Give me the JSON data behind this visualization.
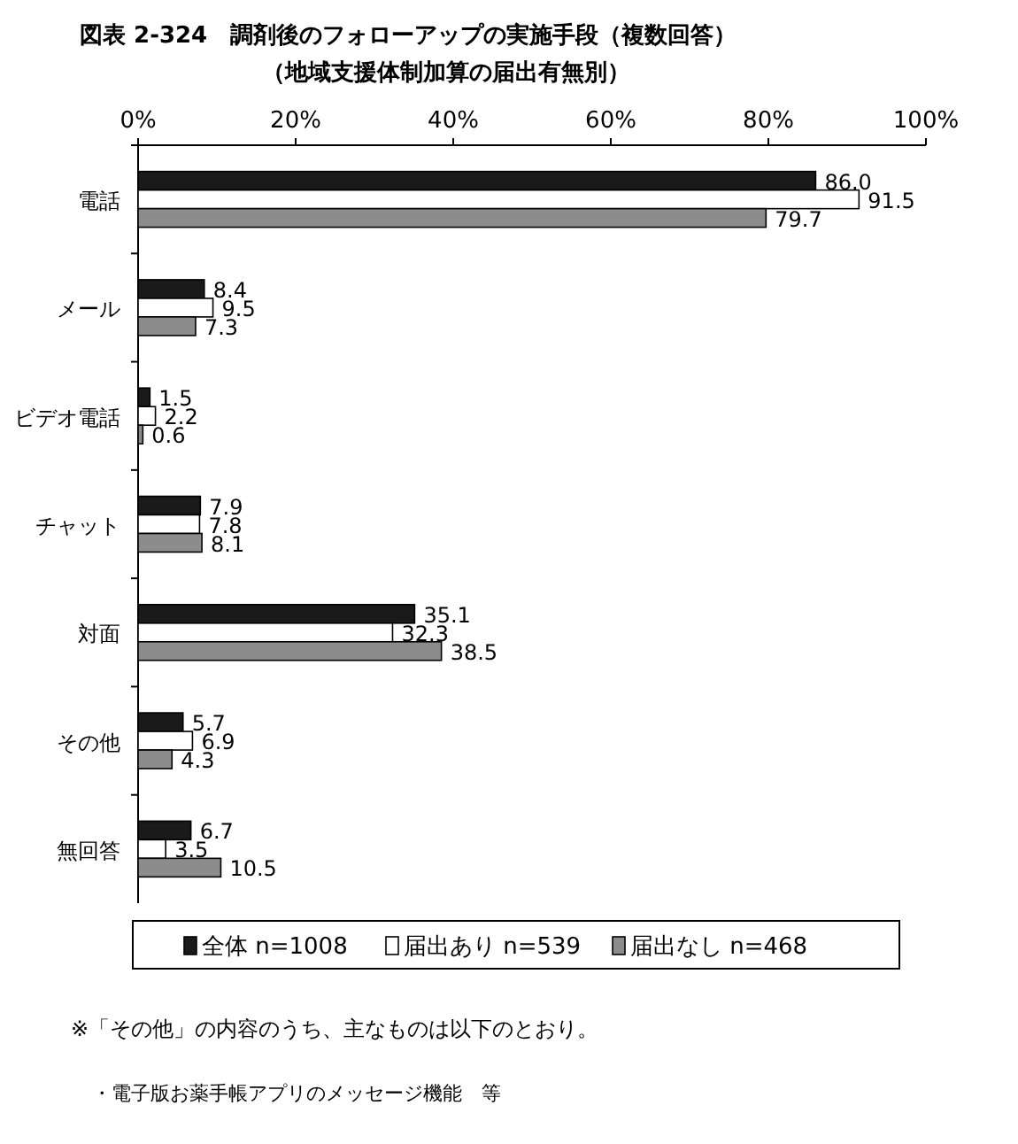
{
  "chart_data": {
    "type": "bar",
    "orientation": "horizontal",
    "title": "図表 2-324　調剤後のフォローアップの実施手段（複数回答）",
    "subtitle": "（地域支援体制加算の届出有無別）",
    "categories": [
      "電話",
      "メール",
      "ビデオ電話",
      "チャット",
      "対面",
      "その他",
      "無回答"
    ],
    "series": [
      {
        "name": "全体 n=1008",
        "color": "#1a1a1a",
        "values": [
          86.0,
          8.4,
          1.5,
          7.9,
          35.1,
          5.7,
          6.7
        ],
        "value_labels": [
          "86.0",
          "8.4",
          "1.5",
          "7.9",
          "35.1",
          "5.7",
          "6.7"
        ]
      },
      {
        "name": "届出あり n=539",
        "color": "#ffffff",
        "values": [
          91.5,
          9.5,
          2.2,
          7.8,
          32.3,
          6.9,
          3.5
        ],
        "value_labels": [
          "91.5",
          "9.5",
          "2.2",
          "7.8",
          "32.3",
          "6.9",
          "3.5"
        ]
      },
      {
        "name": "届出なし n=468",
        "color": "#8c8c8c",
        "values": [
          79.7,
          7.3,
          0.6,
          8.1,
          38.5,
          4.3,
          10.5
        ],
        "value_labels": [
          "79.7",
          "7.3",
          "0.6",
          "8.1",
          "38.5",
          "4.3",
          "10.5"
        ]
      }
    ],
    "xlim": [
      0,
      100
    ],
    "xticks": [
      {
        "value": 0,
        "label": "0%"
      },
      {
        "value": 20,
        "label": "20%"
      },
      {
        "value": 40,
        "label": "40%"
      },
      {
        "value": 60,
        "label": "60%"
      },
      {
        "value": 80,
        "label": "80%"
      },
      {
        "value": 100,
        "label": "100%"
      }
    ],
    "legend": "bottom",
    "grid": false,
    "annotations": [
      "※「その他」の内容のうち、主なものは以下のとおり。",
      "・電子版お薬手帳アプリのメッセージ機能　等"
    ]
  }
}
